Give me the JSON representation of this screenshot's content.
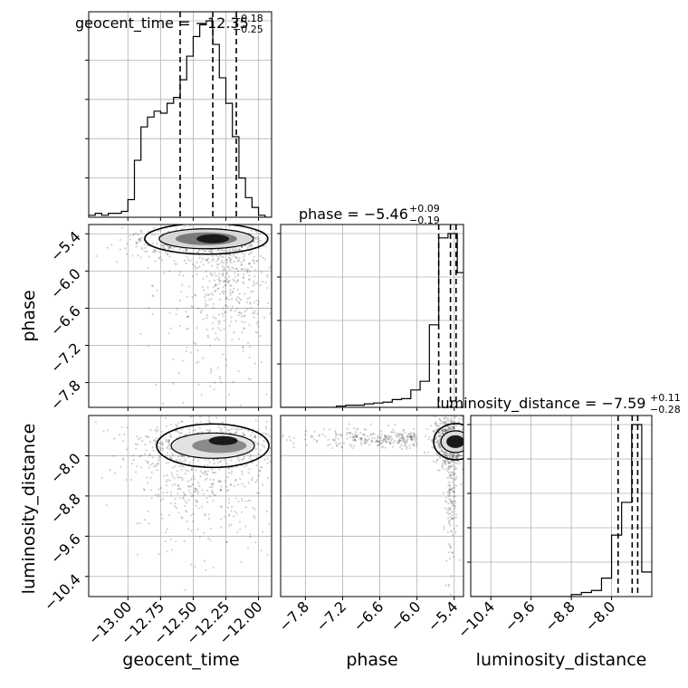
{
  "chart_data": {
    "type": "corner",
    "parameters": [
      "geocent_time",
      "phase",
      "luminosity_distance"
    ],
    "ranges": {
      "geocent_time": [
        -13.3,
        -11.9
      ],
      "phase": [
        -8.2,
        -5.25
      ],
      "luminosity_distance": [
        -10.8,
        -7.2
      ]
    },
    "ticks": {
      "geocent_time": {
        "values": [
          -13.0,
          -12.75,
          -12.5,
          -12.25,
          -12.0
        ],
        "labels": [
          "−13.00",
          "−12.75",
          "−12.50",
          "−12.25",
          "−12.00"
        ]
      },
      "phase": {
        "values": [
          -7.8,
          -7.2,
          -6.6,
          -6.0,
          -5.4
        ],
        "labels": [
          "−7.8",
          "−7.2",
          "−6.6",
          "−6.0",
          "−5.4"
        ]
      },
      "luminosity_distance": {
        "values": [
          -10.4,
          -9.6,
          -8.8,
          -8.0
        ],
        "labels": [
          "−10.4",
          "−9.6",
          "−8.8",
          "−8.0"
        ]
      }
    },
    "axis_labels": {
      "geocent_time": "geocent_time",
      "phase": "phase",
      "luminosity_distance": "luminosity_distance"
    },
    "titles": [
      {
        "param": "geocent_time",
        "prefix": "geocent_time = −12.35",
        "sup": "+0.18",
        "sub": "−0.25"
      },
      {
        "param": "phase",
        "prefix": "phase = −5.46",
        "sup": "+0.09",
        "sub": "−0.19"
      },
      {
        "param": "luminosity_distance",
        "prefix": "luminosity_distance = −7.59",
        "sup": "+0.11",
        "sub": "−0.28"
      }
    ],
    "quantiles": {
      "geocent_time": [
        -12.6,
        -12.35,
        -12.17
      ],
      "phase": [
        -5.65,
        -5.46,
        -5.37
      ],
      "luminosity_distance": [
        -7.87,
        -7.59,
        -7.48
      ]
    },
    "histograms": {
      "geocent_time": {
        "edges": [
          -13.3,
          -13.25,
          -13.2,
          -13.15,
          -13.1,
          -13.05,
          -13.0,
          -12.95,
          -12.9,
          -12.85,
          -12.8,
          -12.75,
          -12.7,
          -12.65,
          -12.6,
          -12.55,
          -12.5,
          -12.45,
          -12.4,
          -12.35,
          -12.3,
          -12.25,
          -12.2,
          -12.15,
          -12.1,
          -12.05,
          -12.0,
          -11.95,
          -11.9
        ],
        "counts": [
          0.5,
          1.0,
          0.5,
          1.0,
          1.0,
          1.5,
          4.5,
          14.5,
          23.0,
          25.5,
          27.0,
          26.5,
          29.0,
          30.5,
          35.0,
          41.0,
          46.0,
          49.0,
          50.0,
          44.0,
          35.5,
          29.0,
          20.5,
          10.0,
          5.0,
          2.5,
          0.5,
          0.0
        ]
      },
      "phase": {
        "edges": [
          -8.2,
          -8.05,
          -7.9,
          -7.75,
          -7.6,
          -7.45,
          -7.3,
          -7.15,
          -7.0,
          -6.85,
          -6.7,
          -6.55,
          -6.4,
          -6.25,
          -6.1,
          -5.95,
          -5.8,
          -5.65,
          -5.5,
          -5.35,
          -5.25
        ],
        "counts": [
          0,
          0,
          0,
          0,
          0,
          0,
          0.3,
          0.5,
          0.5,
          0.8,
          1.0,
          1.2,
          1.8,
          2.0,
          4.0,
          6.0,
          19.0,
          39.0,
          40.0,
          31.0
        ]
      },
      "luminosity_distance": {
        "edges": [
          -10.8,
          -10.6,
          -10.4,
          -10.2,
          -10.0,
          -9.8,
          -9.6,
          -9.4,
          -9.2,
          -9.0,
          -8.8,
          -8.6,
          -8.4,
          -8.2,
          -8.0,
          -7.8,
          -7.6,
          -7.4,
          -7.2
        ],
        "counts": [
          0,
          0,
          0,
          0,
          0,
          0,
          0,
          0,
          0,
          0,
          0.5,
          1.0,
          1.5,
          4.5,
          15.0,
          23.0,
          42.0,
          6.0
        ]
      }
    },
    "grid": true
  }
}
